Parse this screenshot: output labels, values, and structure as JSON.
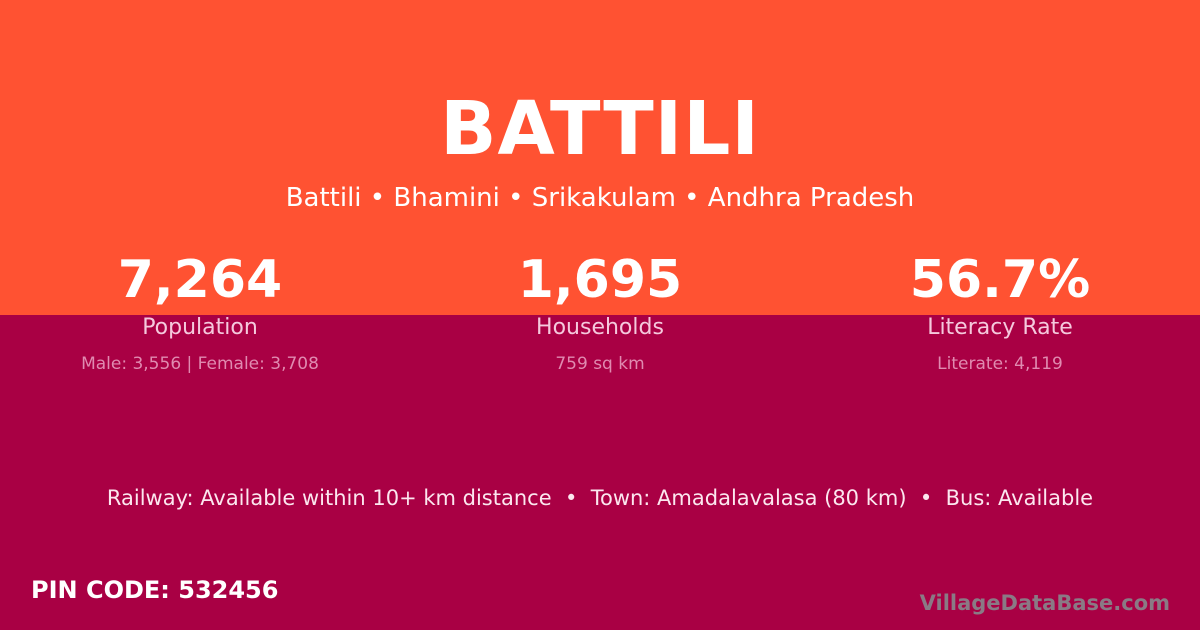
{
  "title": "BATTILI",
  "subtitle": "Battili • Bhamini • Srikakulam • Andhra Pradesh",
  "stats": [
    {
      "value": "7,264",
      "label": "Population",
      "detail": "Male: 3,556 | Female: 3,708"
    },
    {
      "value": "1,695",
      "label": "Households",
      "detail": "759 sq km"
    },
    {
      "value": "56.7%",
      "label": "Literacy Rate",
      "detail": "Literate: 4,119"
    }
  ],
  "info": "Railway: Available within 10+ km distance  •  Town: Amadalavalasa (80 km)  •  Bus: Available",
  "pin": "PIN CODE: 532456",
  "brand": "VillageDataBase.com",
  "colors": {
    "top": "#ff5232",
    "bottom": "#a90044"
  }
}
